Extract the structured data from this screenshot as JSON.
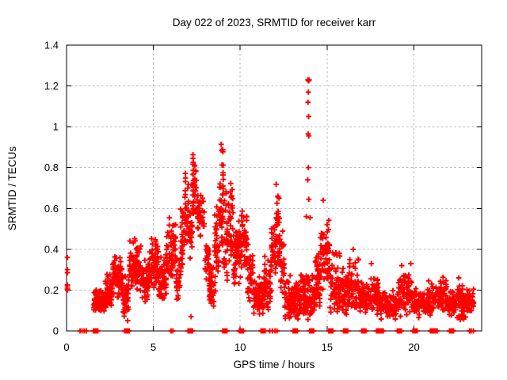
{
  "title": "Day 022 of 2023, SRMTID for receiver karr",
  "chart_data": {
    "type": "scatter",
    "title": "Day 022 of 2023, SRMTID for receiver karr",
    "xlabel": "GPS time / hours",
    "ylabel": "SRMTID / TECUs",
    "xlim": [
      0,
      23.9
    ],
    "ylim": [
      0,
      1.4
    ],
    "xticks": [
      [
        0,
        "0"
      ],
      [
        5,
        "5"
      ],
      [
        10,
        "10"
      ],
      [
        15,
        "15"
      ],
      [
        20,
        "20"
      ]
    ],
    "yticks": [
      [
        0,
        "0"
      ],
      [
        0.2,
        "0.2"
      ],
      [
        0.4,
        "0.4"
      ],
      [
        0.6,
        "0.6"
      ],
      [
        0.8,
        "0.8"
      ],
      [
        1,
        "1"
      ],
      [
        1.2,
        "1.2"
      ],
      [
        1.4,
        "1.4"
      ]
    ],
    "grid": true,
    "legend": "none",
    "marker": "plus",
    "marker_color": "#ff0000",
    "grid_color": "#b8b8b8",
    "background_color": "#ffffff",
    "seed": 20230122,
    "clusters": [
      [
        1.55,
        2.2,
        0.09,
        0.21,
        100
      ],
      [
        2.2,
        2.65,
        0.1,
        0.3,
        60
      ],
      [
        2.65,
        3.25,
        0.16,
        0.4,
        80
      ],
      [
        3.25,
        3.6,
        0.06,
        0.28,
        45
      ],
      [
        3.6,
        4.3,
        0.17,
        0.47,
        85
      ],
      [
        4.3,
        4.75,
        0.13,
        0.36,
        50
      ],
      [
        4.75,
        5.3,
        0.2,
        0.5,
        70
      ],
      [
        5.3,
        5.75,
        0.14,
        0.38,
        55
      ],
      [
        5.75,
        6.3,
        0.25,
        0.58,
        60
      ],
      [
        6.3,
        6.55,
        0.15,
        0.38,
        25
      ],
      [
        6.55,
        6.8,
        0.25,
        0.62,
        30
      ],
      [
        6.8,
        7.05,
        0.4,
        0.81,
        30
      ],
      [
        7.05,
        7.25,
        0.35,
        0.6,
        20
      ],
      [
        7.25,
        7.5,
        0.5,
        0.93,
        40
      ],
      [
        7.5,
        7.95,
        0.45,
        0.68,
        40
      ],
      [
        7.95,
        8.2,
        0.25,
        0.5,
        25
      ],
      [
        8.2,
        8.5,
        0.12,
        0.34,
        45
      ],
      [
        8.5,
        8.8,
        0.18,
        0.7,
        35
      ],
      [
        8.8,
        9.05,
        0.3,
        0.97,
        45
      ],
      [
        9.05,
        9.3,
        0.22,
        0.78,
        30
      ],
      [
        9.3,
        9.6,
        0.3,
        0.8,
        35
      ],
      [
        9.6,
        10.05,
        0.22,
        0.55,
        60
      ],
      [
        10.05,
        10.4,
        0.28,
        0.63,
        45
      ],
      [
        10.4,
        10.75,
        0.13,
        0.45,
        40
      ],
      [
        10.75,
        11.35,
        0.08,
        0.28,
        75
      ],
      [
        11.35,
        11.75,
        0.1,
        0.38,
        50
      ],
      [
        11.75,
        12.05,
        0.18,
        0.58,
        35
      ],
      [
        12.05,
        12.3,
        0.28,
        0.76,
        40
      ],
      [
        12.3,
        12.55,
        0.18,
        0.52,
        30
      ],
      [
        12.55,
        13.35,
        0.05,
        0.28,
        90
      ],
      [
        13.35,
        13.85,
        0.07,
        0.3,
        60
      ],
      [
        13.85,
        14.3,
        0.05,
        0.3,
        55
      ],
      [
        14.3,
        14.6,
        0.1,
        0.42,
        40
      ],
      [
        14.6,
        15.15,
        0.2,
        0.63,
        60
      ],
      [
        15.15,
        15.75,
        0.08,
        0.4,
        60
      ],
      [
        15.75,
        16.25,
        0.08,
        0.33,
        55
      ],
      [
        16.25,
        16.85,
        0.1,
        0.37,
        60
      ],
      [
        16.85,
        17.45,
        0.07,
        0.26,
        55
      ],
      [
        17.45,
        17.95,
        0.08,
        0.3,
        50
      ],
      [
        17.95,
        19.05,
        0.05,
        0.22,
        95
      ],
      [
        19.05,
        19.65,
        0.07,
        0.3,
        55
      ],
      [
        19.65,
        19.95,
        0.09,
        0.32,
        25
      ],
      [
        19.95,
        20.45,
        0.06,
        0.22,
        45
      ],
      [
        20.45,
        21.0,
        0.07,
        0.24,
        50
      ],
      [
        21.0,
        21.9,
        0.09,
        0.28,
        70
      ],
      [
        21.9,
        22.45,
        0.07,
        0.22,
        50
      ],
      [
        22.45,
        23.0,
        0.05,
        0.25,
        55
      ],
      [
        23.0,
        23.45,
        0.09,
        0.21,
        45
      ]
    ],
    "points": [
      [
        0.05,
        0.36
      ],
      [
        0.05,
        0.3
      ],
      [
        0.05,
        0.285
      ],
      [
        0.05,
        0.225
      ],
      [
        0.05,
        0.215
      ],
      [
        0.05,
        0.205
      ],
      [
        0.05,
        0.2
      ],
      [
        13.9,
        1.23
      ],
      [
        13.96,
        1.23
      ],
      [
        13.93,
        1.225
      ],
      [
        13.92,
        1.17
      ],
      [
        13.9,
        1.12
      ],
      [
        13.94,
        1.05
      ],
      [
        13.91,
        0.965
      ],
      [
        13.95,
        0.955
      ],
      [
        13.92,
        0.8
      ],
      [
        13.89,
        0.74
      ],
      [
        13.95,
        0.645
      ],
      [
        13.8,
        0.56
      ],
      [
        14.02,
        0.555
      ],
      [
        14.78,
        0.64
      ],
      [
        20.85,
        0.245
      ],
      [
        22.58,
        0.26
      ],
      [
        22.62,
        0.22
      ],
      [
        12.88,
        0.07
      ],
      [
        7.17,
        0.07
      ],
      [
        3.52,
        0.05
      ],
      [
        16.5,
        0.4
      ],
      [
        17.55,
        0.33
      ],
      [
        19.3,
        0.32
      ],
      [
        19.82,
        0.33
      ]
    ],
    "zero_marks": [
      [
        0.78,
        1
      ],
      [
        0.9,
        1
      ],
      [
        1.02,
        1
      ],
      [
        1.14,
        1
      ],
      [
        1.6,
        4
      ],
      [
        1.75,
        4
      ],
      [
        3.4,
        4
      ],
      [
        3.55,
        4
      ],
      [
        6.02,
        1
      ],
      [
        6.12,
        1
      ],
      [
        7.05,
        4
      ],
      [
        7.2,
        4
      ],
      [
        9.05,
        4
      ],
      [
        9.2,
        3
      ],
      [
        10.0,
        4
      ],
      [
        10.15,
        3
      ],
      [
        11.25,
        4
      ],
      [
        11.4,
        3
      ],
      [
        11.7,
        1
      ],
      [
        11.85,
        1
      ],
      [
        12.0,
        1
      ],
      [
        12.12,
        1
      ],
      [
        13.1,
        4
      ],
      [
        13.25,
        3
      ],
      [
        14.05,
        4
      ],
      [
        14.2,
        3
      ],
      [
        15.15,
        4
      ],
      [
        15.3,
        3
      ],
      [
        16.0,
        4
      ],
      [
        16.15,
        3
      ],
      [
        17.05,
        4
      ],
      [
        17.2,
        3
      ],
      [
        17.9,
        4
      ],
      [
        18.05,
        4
      ],
      [
        18.2,
        3
      ],
      [
        19.1,
        4
      ],
      [
        19.25,
        3
      ],
      [
        20.0,
        4
      ],
      [
        20.15,
        3
      ],
      [
        21.0,
        4
      ],
      [
        21.15,
        4
      ],
      [
        21.3,
        3
      ],
      [
        22.1,
        4
      ],
      [
        22.25,
        3
      ],
      [
        23.2,
        1
      ],
      [
        23.3,
        1
      ],
      [
        23.42,
        1
      ]
    ]
  }
}
